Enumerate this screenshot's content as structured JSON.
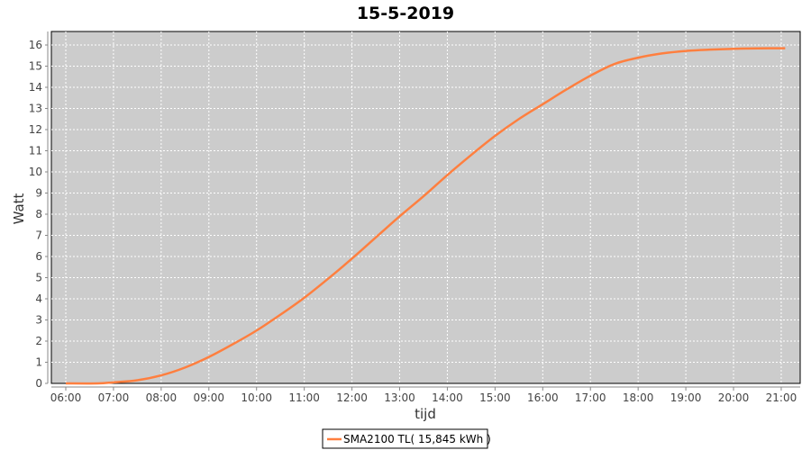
{
  "chart_data": {
    "type": "line",
    "title": "15-5-2019",
    "xlabel": "tijd",
    "ylabel": "Watt",
    "ylim": [
      0,
      16.5
    ],
    "xlim": [
      "05:48",
      "21:24"
    ],
    "yticks": [
      0,
      1,
      2,
      3,
      4,
      5,
      6,
      7,
      8,
      9,
      10,
      11,
      12,
      13,
      14,
      15,
      16
    ],
    "xticks": [
      "06:00",
      "07:00",
      "08:00",
      "09:00",
      "10:00",
      "11:00",
      "12:00",
      "13:00",
      "14:00",
      "15:00",
      "16:00",
      "17:00",
      "18:00",
      "19:00",
      "20:00",
      "21:00"
    ],
    "grid": true,
    "legend_position": "bottom",
    "colors": {
      "plot_background": "#cccccc",
      "series": "#ff7f3f",
      "grid": "#ffffff"
    },
    "series": [
      {
        "name": "SMA2100 TL( 15,845 kWh )",
        "x": [
          "06:00",
          "06:40",
          "07:00",
          "07:30",
          "08:00",
          "08:30",
          "09:00",
          "09:30",
          "10:00",
          "10:30",
          "11:00",
          "11:30",
          "12:00",
          "12:30",
          "13:00",
          "13:30",
          "14:00",
          "14:30",
          "15:00",
          "15:30",
          "16:00",
          "16:30",
          "17:00",
          "17:30",
          "18:00",
          "18:30",
          "19:00",
          "19:30",
          "20:00",
          "20:30",
          "21:05"
        ],
        "y": [
          0,
          0,
          0.05,
          0.15,
          0.38,
          0.75,
          1.25,
          1.85,
          2.5,
          3.25,
          4.05,
          4.95,
          5.9,
          6.9,
          7.9,
          8.85,
          9.85,
          10.8,
          11.7,
          12.5,
          13.2,
          13.9,
          14.55,
          15.1,
          15.4,
          15.6,
          15.72,
          15.78,
          15.82,
          15.84,
          15.845
        ]
      }
    ]
  }
}
